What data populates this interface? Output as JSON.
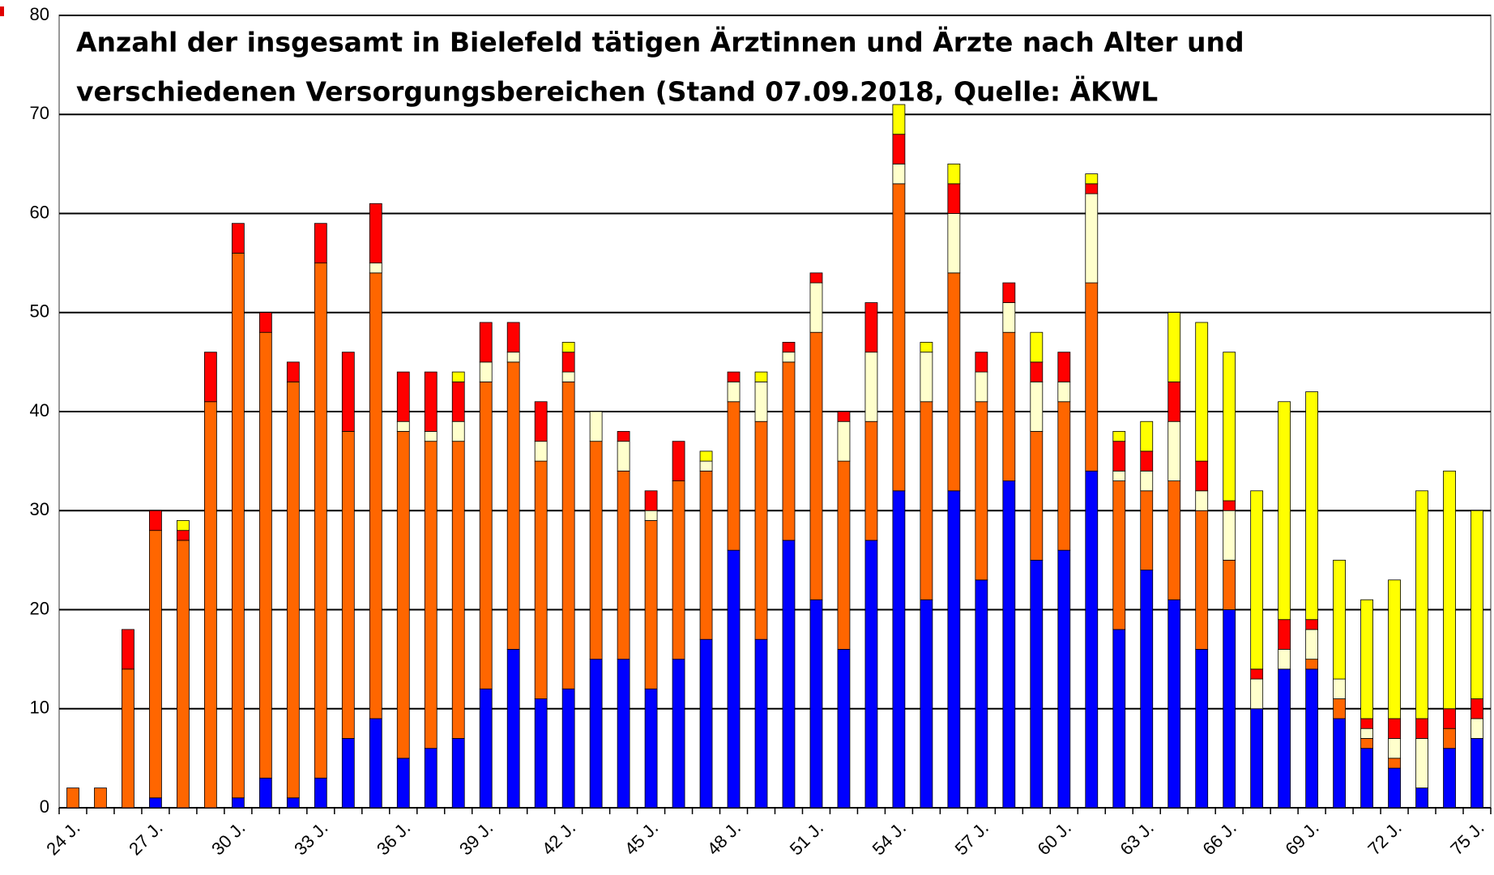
{
  "chart_data": {
    "type": "stacked_bar",
    "title": [
      "Anzahl der insgesamt in Bielefeld tätigen Ärztinnen und Ärzte nach Alter und",
      "verschiedenen Versorgungsbereichen (Stand 07.09.2018, Quelle: ÄKWL"
    ],
    "categories": [
      "24 J.",
      null,
      null,
      "27 J.",
      null,
      null,
      "30 J.",
      null,
      null,
      "33 J.",
      null,
      null,
      "36 J.",
      null,
      null,
      "39 J.",
      null,
      null,
      "42 J.",
      null,
      null,
      "45 J.",
      null,
      null,
      "48 J.",
      null,
      null,
      "51 J.",
      null,
      null,
      "54 J.",
      null,
      null,
      "57 J.",
      null,
      null,
      "60 J.",
      null,
      null,
      "63 J.",
      null,
      null,
      "66 J.",
      null,
      null,
      "69 J.",
      null,
      null,
      "72 J.",
      null,
      null,
      "75 J."
    ],
    "series": [
      {
        "color": "#0000ff",
        "values": [
          0,
          0,
          0,
          1,
          0,
          0,
          1,
          3,
          1,
          3,
          7,
          9,
          5,
          6,
          7,
          12,
          16,
          11,
          12,
          15,
          15,
          12,
          15,
          17,
          26,
          17,
          27,
          21,
          16,
          27,
          32,
          21,
          32,
          23,
          33,
          25,
          26,
          34,
          18,
          24,
          21,
          16,
          20,
          10,
          14,
          14,
          9,
          6,
          4,
          2,
          6,
          7
        ]
      },
      {
        "color": "#ff6600",
        "values": [
          2,
          2,
          14,
          27,
          27,
          41,
          55,
          45,
          42,
          52,
          31,
          45,
          33,
          31,
          30,
          31,
          29,
          24,
          31,
          22,
          19,
          17,
          18,
          17,
          15,
          22,
          18,
          27,
          19,
          12,
          31,
          20,
          22,
          18,
          15,
          13,
          15,
          19,
          15,
          8,
          12,
          14,
          5,
          0,
          0,
          1,
          2,
          1,
          1,
          0,
          2,
          0
        ]
      },
      {
        "color": "#ffffcc",
        "values": [
          0,
          0,
          0,
          0,
          0,
          0,
          0,
          0,
          0,
          0,
          0,
          1,
          1,
          1,
          2,
          2,
          1,
          2,
          1,
          3,
          3,
          1,
          0,
          1,
          2,
          4,
          1,
          5,
          4,
          7,
          2,
          5,
          6,
          3,
          3,
          5,
          2,
          9,
          1,
          2,
          6,
          2,
          5,
          3,
          2,
          3,
          2,
          1,
          2,
          5,
          0,
          2
        ]
      },
      {
        "color": "#ff0000",
        "values": [
          0,
          0,
          4,
          2,
          1,
          5,
          3,
          2,
          2,
          4,
          8,
          6,
          5,
          6,
          4,
          4,
          3,
          4,
          2,
          0,
          1,
          2,
          4,
          0,
          1,
          0,
          1,
          1,
          1,
          5,
          3,
          0,
          3,
          2,
          2,
          2,
          3,
          1,
          3,
          2,
          4,
          3,
          1,
          1,
          3,
          1,
          0,
          1,
          2,
          2,
          2,
          2
        ]
      },
      {
        "color": "#ffff00",
        "values": [
          0,
          0,
          0,
          0,
          1,
          0,
          0,
          0,
          0,
          0,
          0,
          0,
          0,
          0,
          1,
          0,
          0,
          0,
          1,
          0,
          0,
          0,
          0,
          1,
          0,
          1,
          0,
          0,
          0,
          0,
          3,
          1,
          2,
          0,
          0,
          3,
          0,
          1,
          1,
          3,
          7,
          14,
          15,
          18,
          22,
          23,
          12,
          12,
          14,
          23,
          24,
          19
        ]
      }
    ],
    "ylim": [
      0,
      80
    ],
    "yticks": [
      0,
      10,
      20,
      30,
      40,
      50,
      60,
      70,
      80
    ],
    "grid": true
  }
}
